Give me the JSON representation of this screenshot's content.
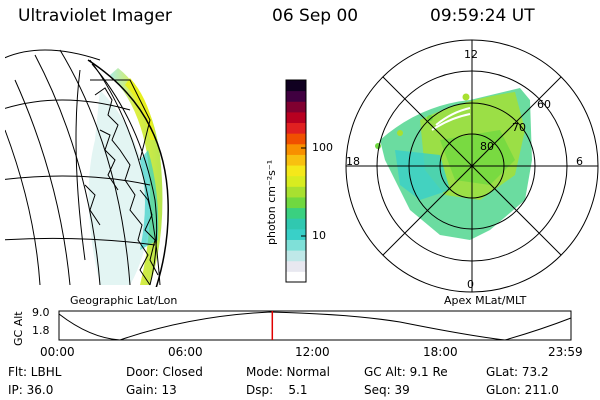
{
  "header": {
    "instrument": "Ultraviolet Imager",
    "date": "06 Sep 00",
    "time": "09:59:24 UT"
  },
  "colorbar": {
    "unit_label": "photon cm⁻²s⁻¹",
    "ticks": [
      "100",
      "10"
    ],
    "colors": [
      "#ffffff",
      "#e8e8f0",
      "#bfe8e8",
      "#7fe0d8",
      "#39d0c8",
      "#30c8b0",
      "#3ad080",
      "#70d840",
      "#a8e030",
      "#d8ec20",
      "#f4e81a",
      "#f8c010",
      "#f89000",
      "#f05000",
      "#e02020",
      "#b80020",
      "#800030",
      "#400040",
      "#100020"
    ]
  },
  "left_map": {
    "caption": "Geographic Lat/Lon"
  },
  "right_map": {
    "caption": "Apex MLat/MLT",
    "mlt_labels": {
      "top": "12",
      "left": "18",
      "right": "6",
      "bottom": "0"
    },
    "lat_labels": [
      "60",
      "70",
      "80"
    ]
  },
  "timeline": {
    "ylabel": "GC Alt",
    "ytick_top": "9.0",
    "ytick_bottom": "1.8",
    "xticks": [
      "00:00",
      "06:00",
      "12:00",
      "18:00",
      "23:59"
    ],
    "current_fraction": 0.4166,
    "marker_color": "#e00000"
  },
  "info": {
    "row1": {
      "filter": "Flt: LBHL",
      "door": "Door: Closed",
      "mode": "Mode: Normal",
      "gc_alt": "GC Alt: 9.1 Re",
      "glat": "GLat: 73.2"
    },
    "row2": {
      "ip": "IP: 36.0",
      "gain": "Gain: 13",
      "dsp": "Dsp:    5.1",
      "seq": "Seq: 39",
      "glon": "GLon: 211.0"
    }
  }
}
